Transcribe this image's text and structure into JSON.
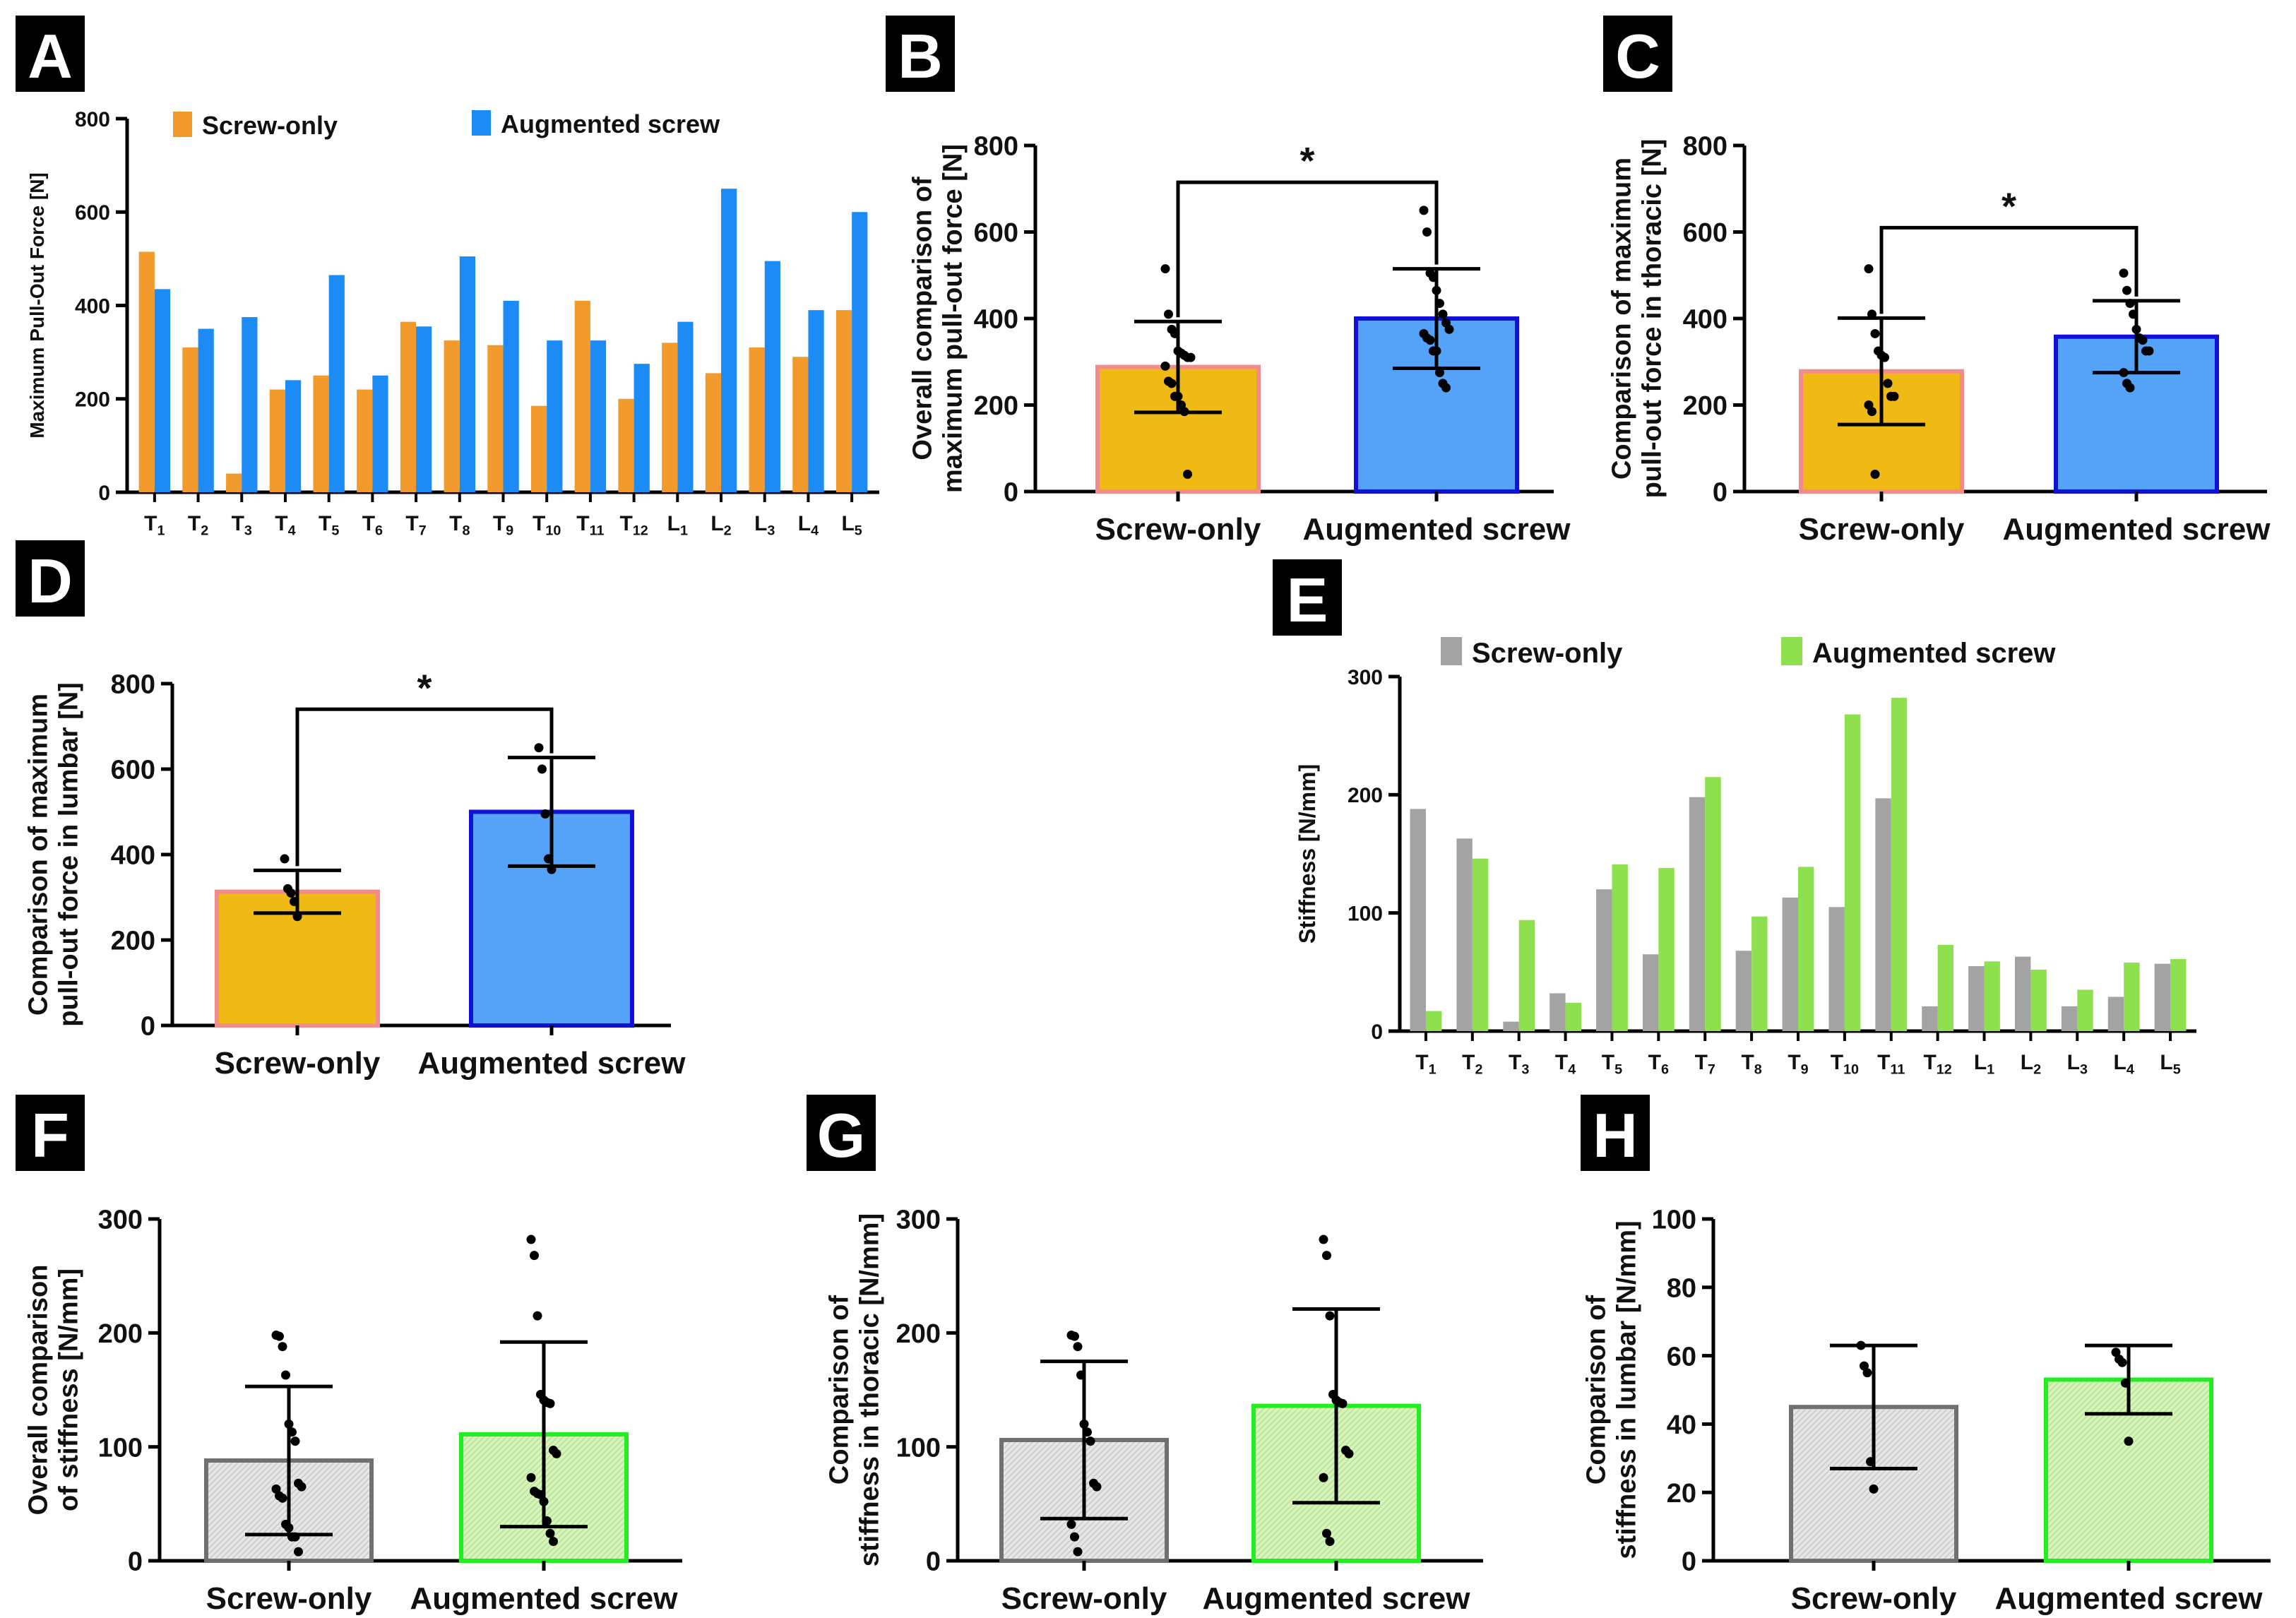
{
  "colors": {
    "screw_only_A": "#F39A2C",
    "augmented_A": "#1C8BF5",
    "screw_only_bar": "#F0BA14",
    "screw_only_border": "#F28C8C",
    "augmented_bar": "#55A3F8",
    "augmented_border": "#1010D8",
    "screw_only_E": "#A3A3A3",
    "augmented_E": "#8EE04E",
    "stiff_screw_fill": "#E4E4E4",
    "stiff_screw_border": "#707070",
    "stiff_aug_fill": "#D4F2B8",
    "stiff_aug_border": "#22EE22"
  },
  "chart_data": [
    {
      "panel": "A",
      "type": "bar",
      "ylabel": "Maximum Pull-Out Force [N]",
      "ylim": [
        0,
        800
      ],
      "yticks": [
        0,
        200,
        400,
        600,
        800
      ],
      "categories": [
        {
          "base": "T",
          "sub": "1"
        },
        {
          "base": "T",
          "sub": "2"
        },
        {
          "base": "T",
          "sub": "3"
        },
        {
          "base": "T",
          "sub": "4"
        },
        {
          "base": "T",
          "sub": "5"
        },
        {
          "base": "T",
          "sub": "6"
        },
        {
          "base": "T",
          "sub": "7"
        },
        {
          "base": "T",
          "sub": "8"
        },
        {
          "base": "T",
          "sub": "9"
        },
        {
          "base": "T",
          "sub": "10"
        },
        {
          "base": "T",
          "sub": "11"
        },
        {
          "base": "T",
          "sub": "12"
        },
        {
          "base": "L",
          "sub": "1"
        },
        {
          "base": "L",
          "sub": "2"
        },
        {
          "base": "L",
          "sub": "3"
        },
        {
          "base": "L",
          "sub": "4"
        },
        {
          "base": "L",
          "sub": "5"
        }
      ],
      "series": [
        {
          "name": "Screw-only",
          "values": [
            515,
            310,
            40,
            220,
            250,
            220,
            365,
            325,
            315,
            185,
            410,
            200,
            320,
            255,
            310,
            290,
            390
          ]
        },
        {
          "name": "Augmented screw",
          "values": [
            435,
            350,
            375,
            240,
            465,
            250,
            355,
            505,
            410,
            325,
            325,
            275,
            365,
            650,
            495,
            390,
            600
          ]
        }
      ]
    },
    {
      "panel": "B",
      "type": "bar",
      "ylabel_lines": [
        "Overall comparison of",
        "maximum pull-out force [N]"
      ],
      "ylim": [
        0,
        800
      ],
      "yticks": [
        0,
        200,
        400,
        600,
        800
      ],
      "categories": [
        "Screw-only",
        "Augmented screw"
      ],
      "values": [
        288,
        400
      ],
      "sd": [
        105,
        115
      ],
      "points": [
        [
          515,
          410,
          375,
          365,
          325,
          320,
          315,
          310,
          310,
          290,
          255,
          250,
          220,
          220,
          200,
          185,
          40
        ],
        [
          650,
          600,
          505,
          495,
          465,
          435,
          410,
          390,
          375,
          365,
          355,
          350,
          325,
          325,
          275,
          250,
          240
        ]
      ],
      "significance": "*"
    },
    {
      "panel": "C",
      "type": "bar",
      "ylabel_lines": [
        "Comparison of maximum",
        "pull-out force in thoracic [N]"
      ],
      "ylim": [
        0,
        800
      ],
      "yticks": [
        0,
        200,
        400,
        600,
        800
      ],
      "categories": [
        "Screw-only",
        "Augmented screw"
      ],
      "values": [
        278,
        358
      ],
      "sd": [
        123,
        83
      ],
      "points": [
        [
          515,
          410,
          365,
          325,
          315,
          310,
          250,
          220,
          220,
          200,
          185,
          40
        ],
        [
          505,
          465,
          435,
          410,
          375,
          355,
          350,
          325,
          325,
          275,
          250,
          240
        ]
      ],
      "significance": "*"
    },
    {
      "panel": "D",
      "type": "bar",
      "ylabel_lines": [
        "Comparison of maximum",
        "pull-out force in lumbar [N]"
      ],
      "ylim": [
        0,
        800
      ],
      "yticks": [
        0,
        200,
        400,
        600,
        800
      ],
      "categories": [
        "Screw-only",
        "Augmented screw"
      ],
      "values": [
        313,
        500
      ],
      "sd": [
        50,
        127
      ],
      "points": [
        [
          390,
          320,
          310,
          290,
          255
        ],
        [
          650,
          600,
          495,
          390,
          365
        ]
      ],
      "significance": "*"
    },
    {
      "panel": "E",
      "type": "bar",
      "ylabel": "Stiffness [N/mm]",
      "ylim": [
        0,
        300
      ],
      "yticks": [
        0,
        100,
        200,
        300
      ],
      "categories": [
        {
          "base": "T",
          "sub": "1"
        },
        {
          "base": "T",
          "sub": "2"
        },
        {
          "base": "T",
          "sub": "3"
        },
        {
          "base": "T",
          "sub": "4"
        },
        {
          "base": "T",
          "sub": "5"
        },
        {
          "base": "T",
          "sub": "6"
        },
        {
          "base": "T",
          "sub": "7"
        },
        {
          "base": "T",
          "sub": "8"
        },
        {
          "base": "T",
          "sub": "9"
        },
        {
          "base": "T",
          "sub": "10"
        },
        {
          "base": "T",
          "sub": "11"
        },
        {
          "base": "T",
          "sub": "12"
        },
        {
          "base": "L",
          "sub": "1"
        },
        {
          "base": "L",
          "sub": "2"
        },
        {
          "base": "L",
          "sub": "3"
        },
        {
          "base": "L",
          "sub": "4"
        },
        {
          "base": "L",
          "sub": "5"
        }
      ],
      "series": [
        {
          "name": "Screw-only",
          "values": [
            188,
            163,
            8,
            32,
            120,
            65,
            198,
            68,
            113,
            105,
            197,
            21,
            55,
            63,
            21,
            29,
            57
          ]
        },
        {
          "name": "Augmented screw",
          "values": [
            17,
            146,
            94,
            24,
            141,
            138,
            215,
            97,
            139,
            268,
            282,
            73,
            59,
            52,
            35,
            58,
            61
          ]
        }
      ]
    },
    {
      "panel": "F",
      "type": "bar",
      "ylabel_lines": [
        "Overall comparison",
        "of stiffness [N/mm]"
      ],
      "ylim": [
        0,
        300
      ],
      "yticks": [
        0,
        100,
        200,
        300
      ],
      "categories": [
        "Screw-only",
        "Augmented screw"
      ],
      "values": [
        88,
        111
      ],
      "sd": [
        65,
        81
      ],
      "points": [
        [
          198,
          197,
          188,
          163,
          120,
          113,
          105,
          68,
          65,
          63,
          57,
          55,
          32,
          29,
          21,
          21,
          8
        ],
        [
          282,
          268,
          215,
          146,
          141,
          139,
          138,
          97,
          94,
          73,
          61,
          59,
          58,
          52,
          35,
          24,
          17
        ]
      ]
    },
    {
      "panel": "G",
      "type": "bar",
      "ylabel_lines": [
        "Comparison of",
        "stiffness in thoracic [N/mm]"
      ],
      "ylim": [
        0,
        300
      ],
      "yticks": [
        0,
        100,
        200,
        300
      ],
      "categories": [
        "Screw-only",
        "Augmented screw"
      ],
      "values": [
        106,
        136
      ],
      "sd": [
        69,
        85
      ],
      "points": [
        [
          198,
          197,
          188,
          163,
          120,
          113,
          105,
          68,
          65,
          32,
          21,
          8
        ],
        [
          282,
          268,
          215,
          146,
          141,
          139,
          138,
          97,
          94,
          73,
          24,
          17
        ]
      ]
    },
    {
      "panel": "H",
      "type": "bar",
      "ylabel_lines": [
        "Comparison of",
        "stiffness in lumbar [N/mm]"
      ],
      "ylim": [
        0,
        100
      ],
      "yticks": [
        0,
        20,
        40,
        60,
        80,
        100
      ],
      "categories": [
        "Screw-only",
        "Augmented screw"
      ],
      "values": [
        45,
        53
      ],
      "sd": [
        18,
        10
      ],
      "points": [
        [
          63,
          57,
          55,
          29,
          21
        ],
        [
          61,
          59,
          58,
          52,
          35
        ]
      ]
    }
  ]
}
